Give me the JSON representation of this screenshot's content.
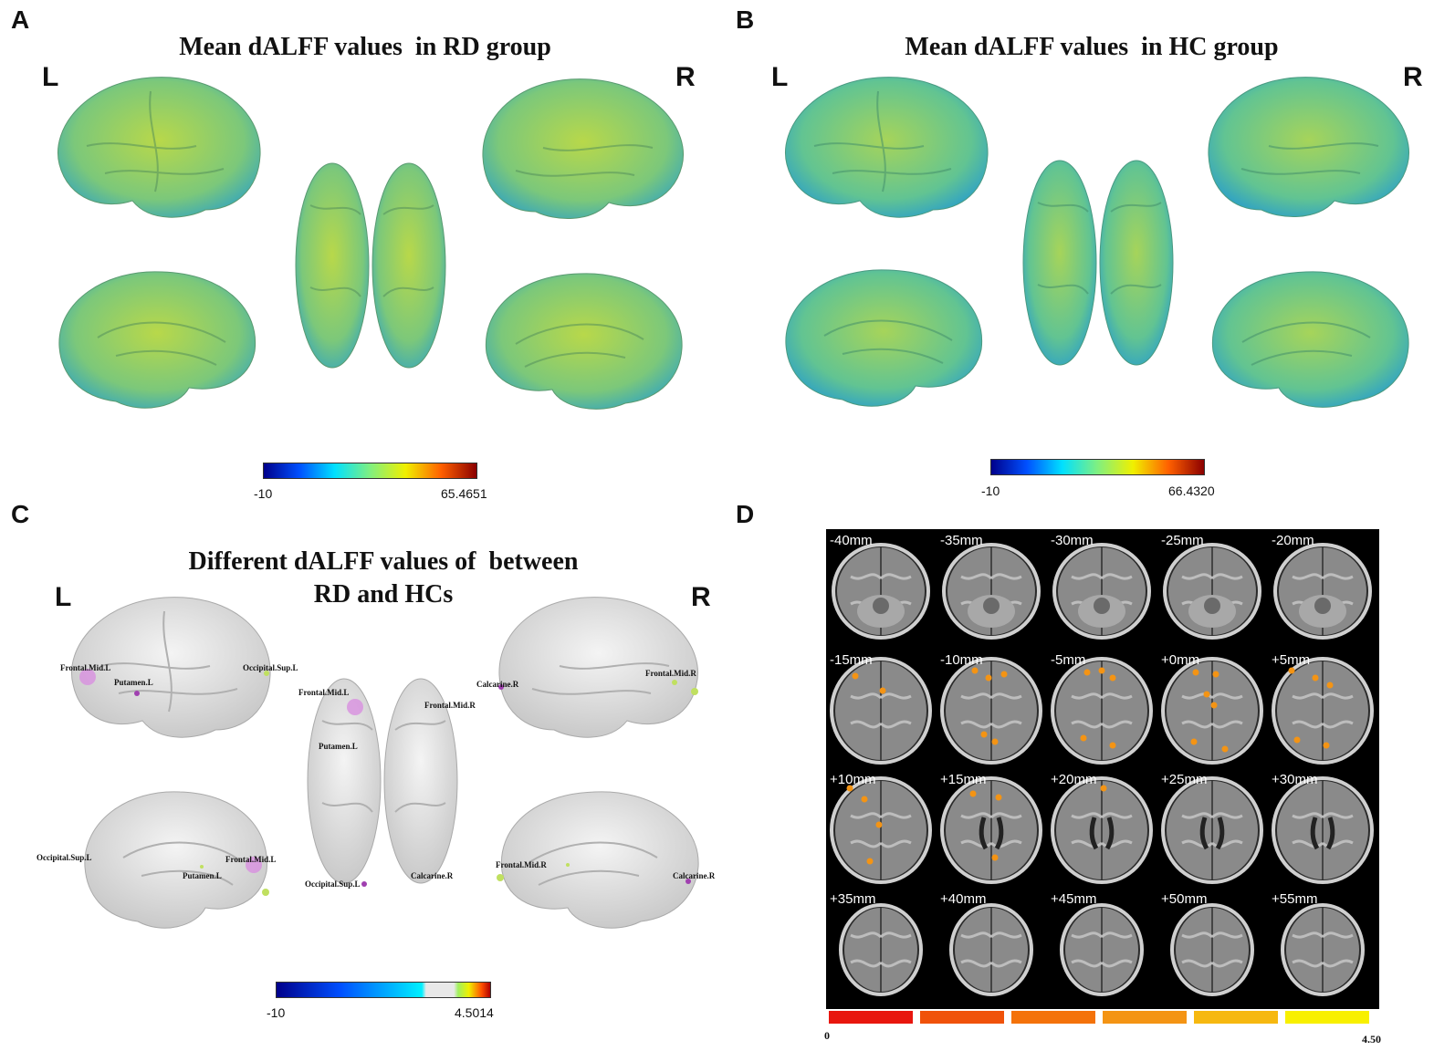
{
  "panels": {
    "A": {
      "letter": "A",
      "title": "Mean dALFF values  in RD group",
      "left": "L",
      "right": "R",
      "cbar_min": "-10",
      "cbar_max": "65.4651"
    },
    "B": {
      "letter": "B",
      "title": "Mean dALFF values  in HC group",
      "left": "L",
      "right": "R",
      "cbar_min": "-10",
      "cbar_max": "66.4320"
    },
    "C": {
      "letter": "C",
      "title": "Different dALFF values of  between\nRD and HCs",
      "left": "L",
      "right": "R",
      "cbar_min": "-10",
      "cbar_max": "4.5014",
      "roi_labels": {
        "lat_left": [
          "Frontal.Mid.L",
          "Putamen.L",
          "Occipital.Sup.L"
        ],
        "top": [
          "Frontal.Mid.L",
          "Frontal.Mid.R",
          "Putamen.L",
          "Occipital.Sup.L",
          "Calcarine.R"
        ],
        "lat_right": [
          "Calcarine.R",
          "Frontal.Mid.R"
        ],
        "med_left": [
          "Occipital.Sup.L",
          "Putamen.L",
          "Frontal.Mid.L"
        ],
        "med_right": [
          "Frontal.Mid.R",
          "Calcarine.R"
        ]
      }
    },
    "D": {
      "letter": "D",
      "slices": [
        "-40mm",
        "-35mm",
        "-30mm",
        "-25mm",
        "-20mm",
        "-15mm",
        "-10mm",
        "-5mm",
        "+0mm",
        "+5mm",
        "+10mm",
        "+15mm",
        "+20mm",
        "+25mm",
        "+30mm",
        "+35mm",
        "+40mm",
        "+45mm",
        "+50mm",
        "+55mm"
      ],
      "scale_min": "0",
      "scale_max": "4.50",
      "scale_colors": [
        "#e8160e",
        "#f0520a",
        "#f4720a",
        "#f49414",
        "#f6b810",
        "#f8f000"
      ]
    }
  }
}
